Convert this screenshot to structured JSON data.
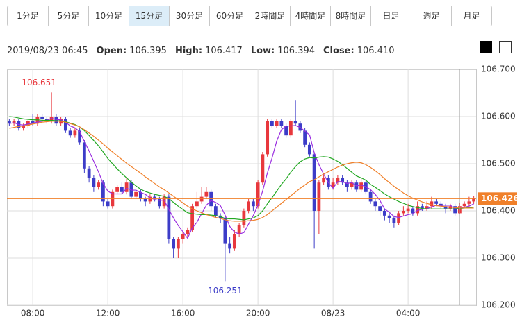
{
  "tabs": [
    "1分足",
    "5分足",
    "10分足",
    "15分足",
    "30分足",
    "60分足",
    "2時間足",
    "4時間足",
    "8時間足",
    "日足",
    "週足",
    "月足"
  ],
  "active_tab": "15分足",
  "info": {
    "datetime": "2019/08/23 06:45",
    "fields": [
      {
        "label": "Open:",
        "value": "106.395"
      },
      {
        "label": "High:",
        "value": "106.417"
      },
      {
        "label": "Low:",
        "value": "106.394"
      },
      {
        "label": "Close:",
        "value": "106.410"
      }
    ]
  },
  "chart_data": {
    "type": "candlestick",
    "categories": [
      null,
      null,
      null,
      null,
      null,
      "08:00",
      null,
      null,
      null,
      null,
      null,
      null,
      null,
      null,
      null,
      null,
      null,
      null,
      null,
      null,
      null,
      "12:00",
      null,
      null,
      null,
      null,
      null,
      null,
      null,
      null,
      null,
      null,
      null,
      null,
      null,
      null,
      null,
      "16:00",
      null,
      null,
      null,
      null,
      null,
      null,
      null,
      null,
      null,
      null,
      null,
      null,
      null,
      null,
      null,
      "20:00",
      null,
      null,
      null,
      null,
      null,
      null,
      null,
      null,
      null,
      null,
      null,
      null,
      null,
      null,
      null,
      "08/23",
      null,
      null,
      null,
      null,
      null,
      null,
      null,
      null,
      null,
      null,
      null,
      null,
      null,
      null,
      null,
      "04:00",
      null,
      null,
      null,
      null,
      null,
      null,
      null,
      null,
      null,
      null,
      null,
      null,
      null,
      null
    ],
    "open": [
      106.59,
      106.585,
      106.59,
      106.575,
      106.58,
      106.59,
      106.585,
      106.6,
      106.595,
      106.59,
      106.6,
      106.585,
      106.595,
      106.57,
      106.56,
      106.57,
      106.545,
      106.49,
      106.47,
      106.45,
      106.46,
      106.42,
      106.41,
      106.44,
      106.45,
      106.44,
      106.46,
      106.43,
      106.44,
      106.425,
      106.42,
      106.43,
      106.425,
      106.41,
      106.43,
      106.34,
      106.32,
      106.34,
      106.35,
      106.36,
      106.41,
      106.42,
      106.43,
      106.44,
      106.41,
      106.39,
      106.385,
      106.33,
      106.32,
      106.35,
      106.37,
      106.4,
      106.42,
      106.41,
      106.46,
      106.52,
      106.59,
      106.58,
      106.59,
      106.58,
      106.56,
      106.59,
      106.585,
      106.57,
      106.54,
      106.52,
      106.4,
      106.46,
      106.47,
      106.45,
      106.46,
      106.47,
      106.46,
      106.45,
      106.46,
      106.445,
      106.46,
      106.44,
      106.42,
      106.41,
      106.4,
      106.39,
      106.385,
      106.375,
      106.395,
      106.4,
      106.405,
      106.395,
      106.41,
      106.405,
      106.41,
      106.42,
      106.415,
      106.41,
      106.405,
      106.41,
      106.395,
      106.41,
      106.415,
      106.42
    ],
    "high": [
      106.595,
      106.595,
      106.595,
      106.585,
      106.595,
      106.605,
      106.605,
      106.605,
      106.6,
      106.651,
      106.605,
      106.6,
      106.6,
      106.575,
      106.575,
      106.575,
      106.55,
      106.495,
      106.475,
      106.465,
      106.465,
      106.425,
      106.445,
      106.455,
      106.46,
      106.47,
      106.465,
      106.445,
      106.445,
      106.43,
      106.435,
      106.435,
      106.43,
      106.435,
      106.435,
      106.345,
      106.345,
      106.355,
      106.365,
      106.415,
      106.44,
      106.45,
      106.45,
      106.445,
      106.415,
      106.395,
      106.39,
      106.345,
      106.36,
      106.375,
      106.405,
      106.425,
      106.425,
      106.465,
      106.525,
      106.595,
      106.595,
      106.595,
      106.595,
      106.585,
      106.595,
      106.635,
      106.59,
      106.575,
      106.545,
      106.525,
      106.465,
      106.48,
      106.475,
      106.47,
      106.475,
      106.475,
      106.465,
      106.465,
      106.465,
      106.47,
      106.465,
      106.445,
      106.425,
      106.415,
      106.405,
      106.395,
      106.39,
      106.4,
      106.41,
      106.415,
      106.41,
      106.42,
      106.415,
      106.42,
      106.43,
      106.425,
      106.42,
      106.415,
      106.415,
      106.415,
      106.417,
      106.42,
      106.43,
      106.432
    ],
    "low": [
      106.58,
      106.58,
      106.57,
      106.57,
      106.575,
      106.58,
      106.58,
      106.59,
      106.585,
      106.585,
      106.58,
      106.58,
      106.565,
      106.555,
      106.555,
      106.54,
      106.48,
      106.46,
      106.44,
      106.445,
      106.41,
      106.405,
      106.405,
      106.435,
      106.435,
      106.435,
      106.425,
      106.425,
      106.42,
      106.41,
      106.415,
      106.42,
      106.405,
      106.405,
      106.33,
      106.3,
      106.3,
      106.33,
      106.345,
      106.355,
      106.405,
      106.415,
      106.425,
      106.4,
      106.385,
      106.375,
      106.251,
      106.31,
      106.315,
      106.345,
      106.365,
      106.395,
      106.4,
      106.405,
      106.455,
      106.515,
      106.575,
      106.575,
      106.575,
      106.555,
      106.555,
      106.58,
      106.565,
      106.535,
      106.515,
      106.32,
      106.35,
      106.455,
      106.445,
      106.445,
      106.455,
      106.455,
      106.44,
      106.445,
      106.44,
      106.44,
      106.435,
      106.415,
      106.4,
      106.39,
      106.38,
      106.375,
      106.365,
      106.37,
      106.39,
      106.395,
      106.39,
      106.39,
      106.4,
      106.4,
      106.405,
      106.41,
      106.405,
      106.395,
      106.4,
      106.39,
      106.394,
      106.405,
      106.41,
      106.415
    ],
    "close": [
      106.585,
      106.59,
      106.575,
      106.58,
      106.59,
      106.585,
      106.6,
      106.595,
      106.59,
      106.6,
      106.585,
      106.595,
      106.57,
      106.56,
      106.57,
      106.545,
      106.49,
      106.47,
      106.45,
      106.46,
      106.42,
      106.41,
      106.44,
      106.45,
      106.44,
      106.46,
      106.43,
      106.44,
      106.425,
      106.42,
      106.43,
      106.425,
      106.41,
      106.43,
      106.34,
      106.32,
      106.34,
      106.35,
      106.36,
      106.41,
      106.42,
      106.43,
      106.44,
      106.41,
      106.39,
      106.385,
      106.33,
      106.32,
      106.35,
      106.37,
      106.4,
      106.42,
      106.41,
      106.46,
      106.52,
      106.59,
      106.58,
      106.59,
      106.58,
      106.56,
      106.59,
      106.585,
      106.57,
      106.54,
      106.52,
      106.4,
      106.46,
      106.47,
      106.45,
      106.46,
      106.47,
      106.46,
      106.45,
      106.46,
      106.445,
      106.46,
      106.44,
      106.42,
      106.41,
      106.4,
      106.39,
      106.385,
      106.375,
      106.395,
      106.4,
      106.405,
      106.395,
      106.41,
      106.405,
      106.41,
      106.42,
      106.415,
      106.41,
      106.405,
      106.41,
      106.395,
      106.41,
      106.415,
      106.42,
      106.426
    ],
    "up_color": "#e8383d",
    "down_color": "#3c3cc8",
    "lines": [
      {
        "color": "#9a2de0",
        "values": [
          106.585,
          106.587,
          106.583,
          106.582,
          106.584,
          106.586,
          106.588,
          106.59,
          106.592,
          106.596,
          106.594,
          106.593,
          106.588,
          106.58,
          106.576,
          106.568,
          106.547,
          106.527,
          106.505,
          106.483,
          106.458,
          106.442,
          106.436,
          106.436,
          106.436,
          106.448,
          106.444,
          106.444,
          106.439,
          106.435,
          106.428,
          106.424,
          106.422,
          106.423,
          106.403,
          106.385,
          106.369,
          106.356,
          106.342,
          106.364,
          106.376,
          106.394,
          106.412,
          106.422,
          106.418,
          106.411,
          106.391,
          106.367,
          106.355,
          106.351,
          106.354,
          106.372,
          106.39,
          106.412,
          106.442,
          106.48,
          106.512,
          106.548,
          106.572,
          106.58,
          106.58,
          106.581,
          106.577,
          106.569,
          106.561,
          106.523,
          106.498,
          106.478,
          106.46,
          106.448,
          106.462,
          106.462,
          106.458,
          106.46,
          106.453,
          106.455,
          106.451,
          106.445,
          106.435,
          106.422,
          106.404,
          106.397,
          106.388,
          106.386,
          106.389,
          106.392,
          106.394,
          106.401,
          106.403,
          106.405,
          106.408,
          106.412,
          106.412,
          106.412,
          106.412,
          106.405,
          106.406,
          106.408,
          106.41,
          106.415
        ]
      },
      {
        "color": "#22a822",
        "values": [
          106.6,
          106.599,
          106.597,
          106.595,
          106.594,
          106.593,
          106.593,
          106.592,
          106.592,
          106.592,
          106.591,
          106.591,
          106.589,
          106.586,
          106.583,
          106.578,
          106.57,
          106.56,
          106.549,
          106.538,
          106.525,
          106.511,
          106.5,
          106.489,
          106.479,
          106.47,
          106.461,
          106.453,
          106.446,
          106.441,
          106.438,
          106.435,
          106.433,
          106.431,
          106.426,
          106.418,
          106.41,
          106.403,
          106.396,
          106.394,
          106.393,
          106.392,
          106.392,
          106.391,
          106.39,
          106.388,
          106.384,
          106.383,
          106.383,
          106.382,
          106.381,
          106.383,
          106.385,
          106.39,
          106.4,
          106.415,
          106.428,
          106.442,
          106.456,
          106.468,
          106.482,
          106.494,
          106.504,
          106.51,
          106.513,
          106.512,
          106.514,
          106.515,
          106.514,
          106.51,
          106.505,
          106.498,
          106.49,
          106.482,
          106.474,
          106.47,
          106.465,
          106.456,
          106.45,
          106.443,
          106.436,
          106.43,
          106.425,
          106.42,
          106.416,
          106.412,
          106.409,
          106.407,
          106.405,
          106.404,
          106.404,
          106.404,
          106.404,
          106.404,
          106.404,
          106.404,
          106.405,
          106.406,
          106.407,
          106.408
        ]
      },
      {
        "color": "#f0802a",
        "values": [
          106.575,
          106.577,
          106.579,
          106.58,
          106.582,
          106.584,
          106.586,
          106.588,
          106.589,
          106.59,
          106.59,
          106.59,
          106.588,
          106.585,
          106.582,
          106.578,
          106.572,
          106.565,
          106.558,
          106.55,
          106.542,
          106.533,
          106.525,
          106.517,
          106.509,
          106.501,
          106.494,
          106.487,
          106.48,
          106.472,
          106.465,
          106.458,
          106.451,
          106.445,
          106.438,
          106.431,
          106.424,
          106.417,
          106.41,
          106.404,
          106.4,
          106.396,
          106.392,
          106.389,
          106.386,
          106.384,
          106.381,
          106.379,
          106.378,
          106.378,
          106.378,
          106.379,
          106.38,
          106.382,
          106.386,
          106.392,
          106.4,
          106.408,
          106.416,
          106.424,
          106.432,
          106.44,
          106.448,
          106.455,
          106.462,
          106.466,
          106.472,
          106.478,
          106.483,
          106.488,
          106.493,
          106.497,
          106.5,
          106.502,
          106.503,
          106.502,
          106.498,
          106.492,
          106.485,
          106.477,
          106.468,
          106.46,
          106.452,
          106.445,
          106.438,
          106.432,
          106.427,
          106.423,
          106.419,
          106.416,
          106.413,
          106.411,
          106.41,
          106.409,
          106.408,
          106.407,
          106.406,
          106.406,
          106.406,
          106.406
        ]
      }
    ],
    "ylim": [
      106.2,
      106.7
    ],
    "yticks": [
      {
        "value": 106.2,
        "label": "106.200"
      },
      {
        "value": 106.3,
        "label": "106.300"
      },
      {
        "value": 106.4,
        "label": "106.400"
      },
      {
        "value": 106.5,
        "label": "106.500"
      },
      {
        "value": 106.6,
        "label": "106.600"
      },
      {
        "value": 106.7,
        "label": "106.700"
      }
    ],
    "grid": true,
    "price_line_color": "#f0802a"
  }
}
